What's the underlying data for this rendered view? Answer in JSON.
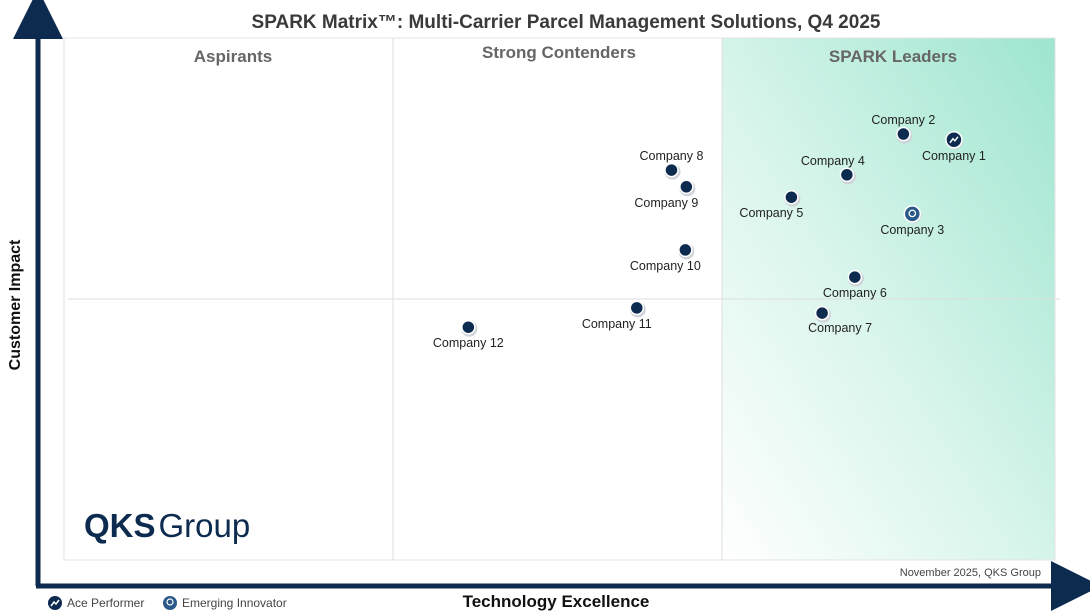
{
  "chart_data": {
    "type": "scatter",
    "title": "SPARK Matrix™: Multi-Carrier Parcel Management Solutions, Q4 2025",
    "xlabel": "Technology Excellence",
    "ylabel": "Customer Impact",
    "xlim": [
      0,
      100
    ],
    "ylim": [
      0,
      100
    ],
    "quadrant_dividers": {
      "x": [
        33.2,
        66.4
      ],
      "y": 50
    },
    "regions": [
      "Aspirants",
      "Strong Contenders",
      "SPARK Leaders"
    ],
    "footnote": "November 2025, QKS Group",
    "logo": {
      "bold": "QKS",
      "light": "Group"
    },
    "legend": [
      {
        "label": "Ace Performer",
        "icon": "trend-line-icon"
      },
      {
        "label": "Emerging Innovator",
        "icon": "lightbulb-icon"
      }
    ],
    "colors": {
      "axis": "#0d2a4f",
      "point": "#0d2a4f",
      "innovator": "#2c5a88",
      "leaders_gradient": "#9ee5cf"
    },
    "points": [
      {
        "label": "Company 1",
        "x": 89.8,
        "y": 80.5,
        "badge": "Ace Performer",
        "label_pos": "below"
      },
      {
        "label": "Company 2",
        "x": 84.7,
        "y": 81.6,
        "label_pos": "above"
      },
      {
        "label": "Company 3",
        "x": 85.6,
        "y": 66.3,
        "badge": "Emerging Innovator",
        "label_pos": "below"
      },
      {
        "label": "Company 4",
        "x": 79.0,
        "y": 73.8,
        "label_pos": "above-left"
      },
      {
        "label": "Company 5",
        "x": 73.4,
        "y": 69.5,
        "label_pos": "below-left"
      },
      {
        "label": "Company 6",
        "x": 79.8,
        "y": 54.2,
        "label_pos": "below"
      },
      {
        "label": "Company 7",
        "x": 76.5,
        "y": 47.3,
        "label_pos": "below-right"
      },
      {
        "label": "Company 8",
        "x": 61.3,
        "y": 74.7,
        "label_pos": "above"
      },
      {
        "label": "Company 9",
        "x": 62.8,
        "y": 71.5,
        "label_pos": "below-left"
      },
      {
        "label": "Company 10",
        "x": 62.7,
        "y": 59.4,
        "label_pos": "below-left"
      },
      {
        "label": "Company 11",
        "x": 57.8,
        "y": 48.3,
        "label_pos": "below-left"
      },
      {
        "label": "Company 12",
        "x": 40.8,
        "y": 44.6,
        "label_pos": "below"
      }
    ]
  }
}
